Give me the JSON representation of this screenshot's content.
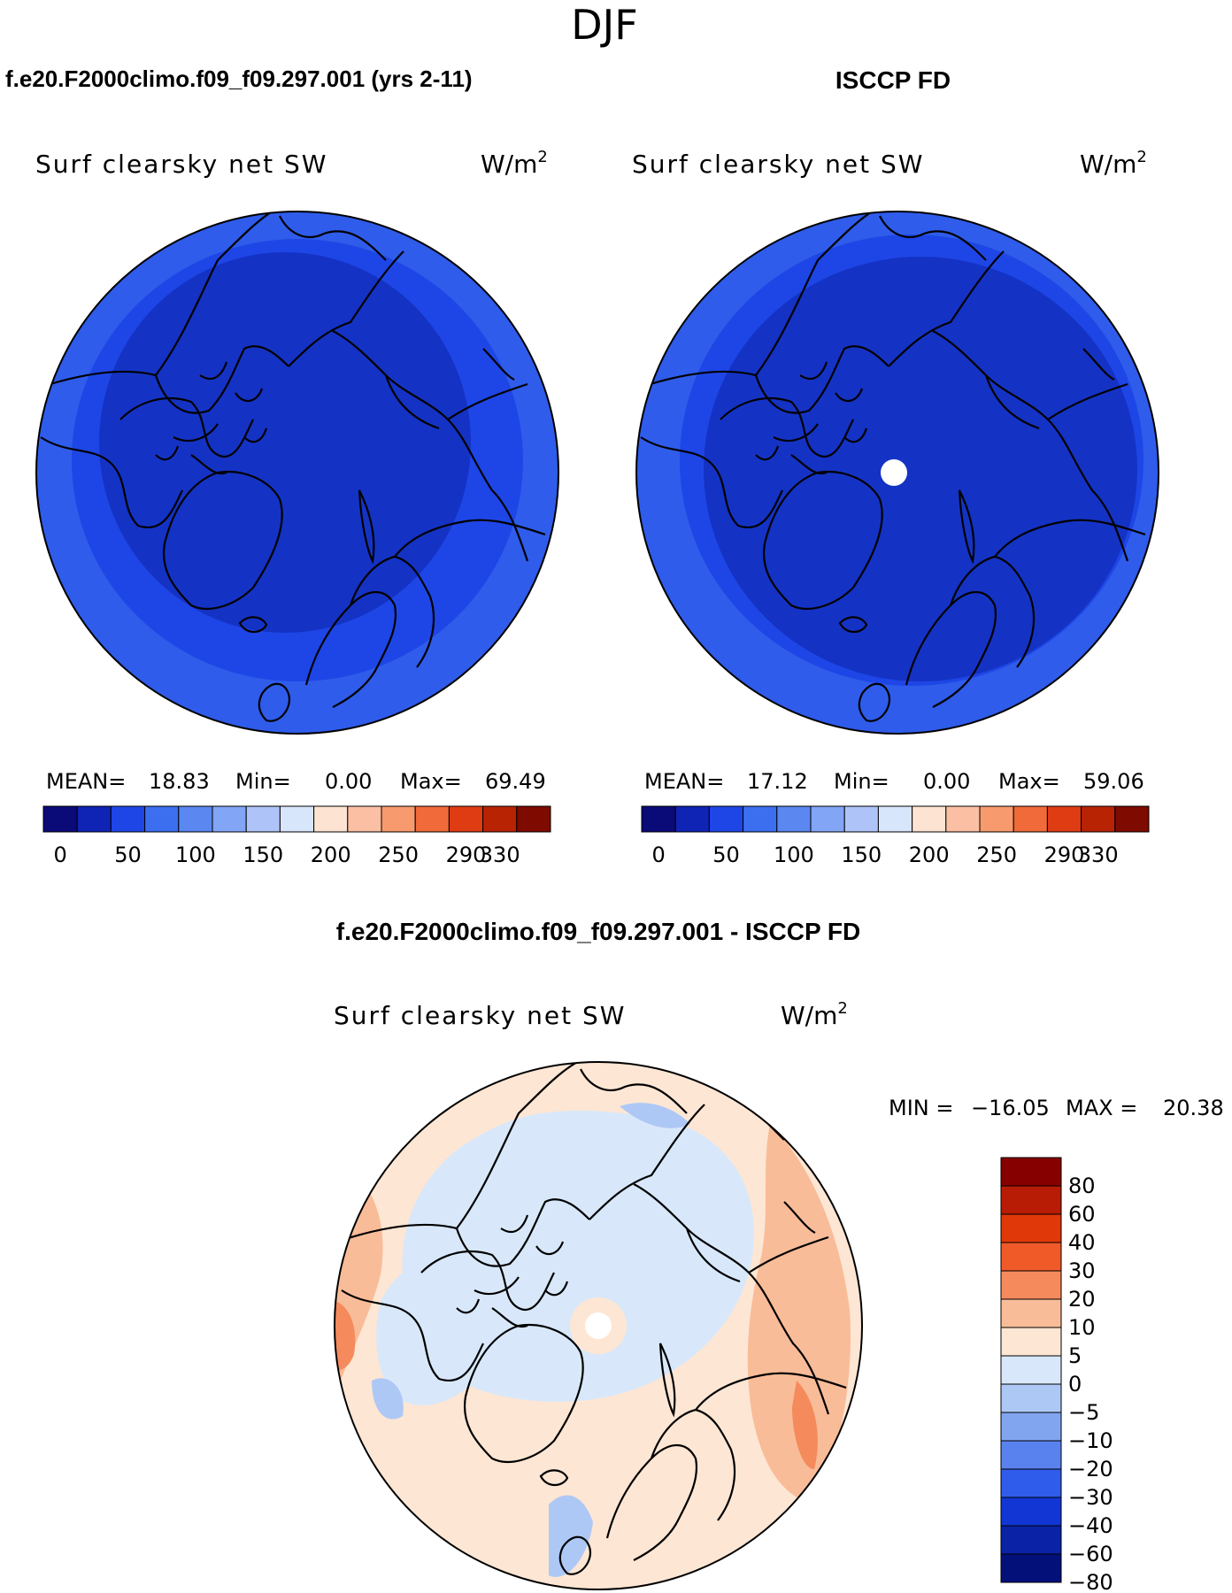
{
  "season": "DJF",
  "panels": [
    {
      "header": "f.e20.F2000climo.f09_f09.297.001 (yrs 2-11)",
      "variable": "Surf clearsky net SW",
      "units": "W/m",
      "units_exponent": "2",
      "stats": {
        "mean_label": "MEAN=",
        "mean": "18.83",
        "min_label": "Min=",
        "min": "0.00",
        "max_label": "Max=",
        "max": "69.49"
      },
      "pole_hole": false
    },
    {
      "header": "ISCCP FD",
      "variable": "Surf clearsky net SW",
      "units": "W/m",
      "units_exponent": "2",
      "stats": {
        "mean_label": "MEAN=",
        "mean": "17.12",
        "min_label": "Min=",
        "min": "0.00",
        "max_label": "Max=",
        "max": "59.06"
      },
      "pole_hole": true
    }
  ],
  "abs_colorbar": {
    "colors": [
      "#0a0a78",
      "#0f23b4",
      "#1e46e6",
      "#3c6ef0",
      "#5a87f0",
      "#82a5f5",
      "#aec4f8",
      "#d8e6fb",
      "#fde4d2",
      "#fbc0a3",
      "#f79a6e",
      "#f06a3a",
      "#e03c14",
      "#b82304",
      "#7f0a00"
    ],
    "tick_labels": [
      "0",
      "50",
      "100",
      "150",
      "200",
      "250",
      "290",
      "330"
    ]
  },
  "diff_panel": {
    "header": "f.e20.F2000climo.f09_f09.297.001 - ISCCP FD",
    "variable": "Surf clearsky net SW",
    "units": "W/m",
    "units_exponent": "2",
    "min_label": "MIN =",
    "min": "−16.05",
    "max_label": "MAX =",
    "max": "20.38",
    "colorbar": {
      "colors_top_to_bottom": [
        "#870000",
        "#b81c04",
        "#e03808",
        "#f05a28",
        "#f58a5c",
        "#f9bc98",
        "#fde6d4",
        "#d8e8fa",
        "#aec8f5",
        "#82a5f0",
        "#5a82ee",
        "#2f5cea",
        "#1236d4",
        "#0a22a6",
        "#04107a"
      ],
      "tick_labels": [
        "80",
        "60",
        "40",
        "30",
        "20",
        "10",
        "5",
        "0",
        "−5",
        "−10",
        "−20",
        "−30",
        "−40",
        "−60",
        "−80"
      ]
    }
  },
  "map_colors": {
    "abs_dark": "#1433c4",
    "abs_mid": "#1e46e6",
    "abs_light": "#3c6ef0",
    "diff_pos_light": "#fde6d4",
    "diff_pos_mid": "#f9bc98",
    "diff_pos_strong": "#f58a5c",
    "diff_neg_light": "#d8e8fa",
    "diff_neg_mid": "#aec8f5",
    "diff_neg_strong": "#82a5f0",
    "coastline": "#000000"
  }
}
